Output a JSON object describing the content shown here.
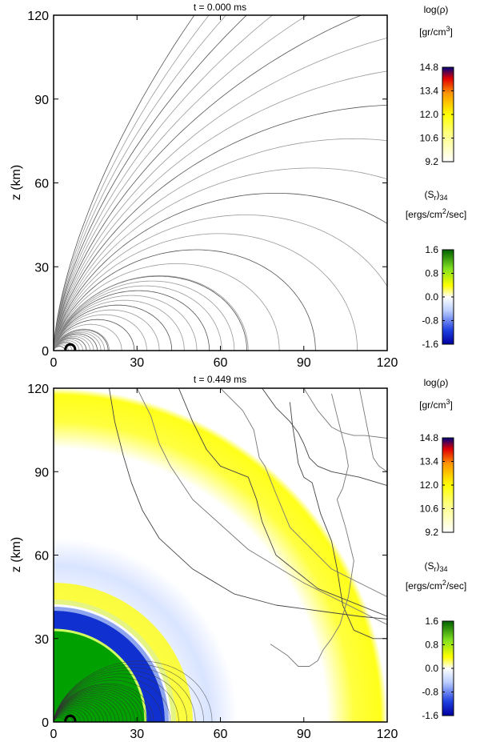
{
  "chart_data": [
    {
      "type": "heatmap",
      "title": "t = 0.000 ms",
      "xlabel": "",
      "ylabel": "z (km)",
      "xlim": [
        0,
        120
      ],
      "ylim": [
        0,
        120
      ],
      "xticks": [
        "0",
        "30",
        "60",
        "90",
        "120"
      ],
      "yticks": [
        "0",
        "30",
        "60",
        "90",
        "120"
      ],
      "colorbars": [
        {
          "label": "log(ρ)",
          "units_base": "[gr/cm",
          "units_sup": "3",
          "units_end": "]",
          "ticks": [
            "14.8",
            "13.4",
            "12.0",
            "10.6",
            "9.2"
          ]
        },
        {
          "label": "(S",
          "label_sub": "r",
          "label_end": ")",
          "label_sub2": "34",
          "units_base": "[ergs/cm",
          "units_sup": "2",
          "units_end": "/sec]",
          "ticks": [
            "1.6",
            "0.8",
            "0.0",
            "-0.8",
            "-1.6"
          ]
        }
      ]
    },
    {
      "type": "heatmap",
      "title": "t = 0.449 ms",
      "xlabel": "",
      "ylabel": "z (km)",
      "xlim": [
        0,
        120
      ],
      "ylim": [
        0,
        120
      ],
      "xticks": [
        "0",
        "30",
        "60",
        "90",
        "120"
      ],
      "yticks": [
        "0",
        "30",
        "60",
        "90",
        "120"
      ],
      "colorbars": [
        {
          "label": "log(ρ)",
          "units_base": "[gr/cm",
          "units_sup": "3",
          "units_end": "]",
          "ticks": [
            "14.8",
            "13.4",
            "12.0",
            "10.6",
            "9.2"
          ]
        },
        {
          "label": "(S",
          "label_sub": "r",
          "label_end": ")",
          "label_sub2": "34",
          "units_base": "[ergs/cm",
          "units_sup": "2",
          "units_end": "/sec]",
          "ticks": [
            "1.6",
            "0.8",
            "0.0",
            "-0.8",
            "-1.6"
          ]
        }
      ]
    }
  ],
  "colors": {
    "density": [
      "#ffffff",
      "#ffff00",
      "#ff9900",
      "#e00000",
      "#000080"
    ],
    "flux": [
      "#0000c8",
      "#4060e0",
      "#c8d8ff",
      "#ffffff",
      "#ffff00",
      "#90e020",
      "#006000"
    ]
  }
}
